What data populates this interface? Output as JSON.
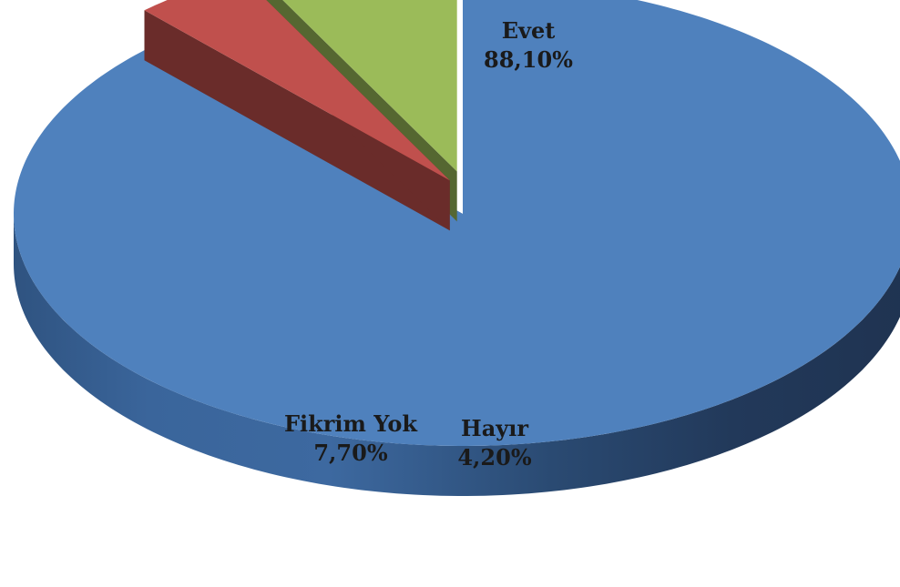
{
  "chart_data": {
    "type": "pie",
    "style": "3d-exploded",
    "slices": [
      {
        "label": "Evet",
        "value": 88.1,
        "value_label": "88,10%",
        "color": "#4F81BD"
      },
      {
        "label": "Hayır",
        "value": 4.2,
        "value_label": "4,20%",
        "color": "#C0504D"
      },
      {
        "label": "Fikrim Yok",
        "value": 7.7,
        "value_label": "7,70%",
        "color": "#9BBB59"
      }
    ],
    "legend": "none",
    "data_labels": "category and percentage, on slices"
  }
}
